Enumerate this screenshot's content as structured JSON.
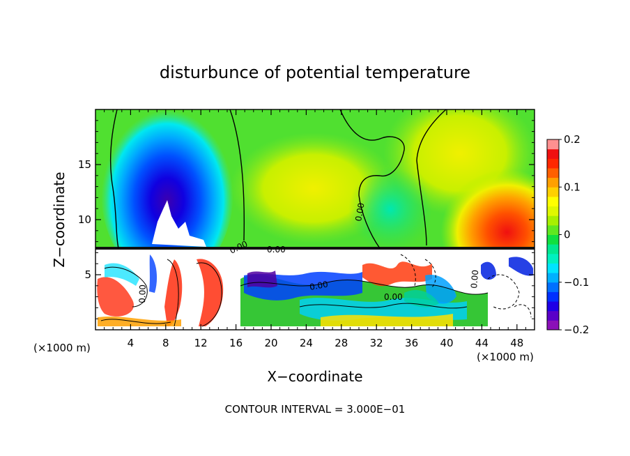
{
  "chart_data": {
    "type": "heatmap",
    "title": "disturbunce of potential temperature",
    "xlabel": "X−coordinate",
    "ylabel": "Z−coordinate",
    "x_unit_left": "(×1000 m)",
    "x_unit_right": "(×1000 m)",
    "footer": "CONTOUR INTERVAL = 3.000E−01",
    "xlim": [
      0,
      50
    ],
    "ylim": [
      0,
      20
    ],
    "x_ticks": [
      4,
      8,
      12,
      16,
      20,
      24,
      28,
      32,
      36,
      40,
      44,
      48
    ],
    "y_ticks": [
      5,
      10,
      15
    ],
    "colorbar": {
      "min": -0.2,
      "max": 0.2,
      "tick_values": [
        0.2,
        0.1,
        0,
        -0.1,
        -0.2
      ],
      "tick_labels": [
        "0.2",
        "0.1",
        "0",
        "−0.1",
        "−0.2"
      ],
      "colors": [
        "#8b10b8",
        "#5a00c8",
        "#1e00e6",
        "#0030ff",
        "#0070ff",
        "#00b0ff",
        "#00e4ff",
        "#00f0c0",
        "#00e890",
        "#10e040",
        "#60e820",
        "#a8f000",
        "#e0f800",
        "#ffff00",
        "#ffd000",
        "#ffa000",
        "#ff6000",
        "#ff2800",
        "#f01010",
        "#ff9090"
      ]
    },
    "contour_labels": [
      "0.00",
      "0.00",
      "0.00",
      "0.00",
      "0.00",
      "0.00",
      "0.00"
    ],
    "field_features": [
      {
        "kind": "negative-anomaly",
        "x": 8,
        "z": 14,
        "value": -0.2
      },
      {
        "kind": "positive-anomaly",
        "x": 46,
        "z": 9,
        "value": 0.15
      },
      {
        "kind": "positive-anomaly",
        "x": 23,
        "z": 13,
        "value": 0.1
      },
      {
        "kind": "turbulent-boundary-layer",
        "x_range": [
          0,
          50
        ],
        "z_range": [
          0,
          7.2
        ]
      }
    ]
  }
}
